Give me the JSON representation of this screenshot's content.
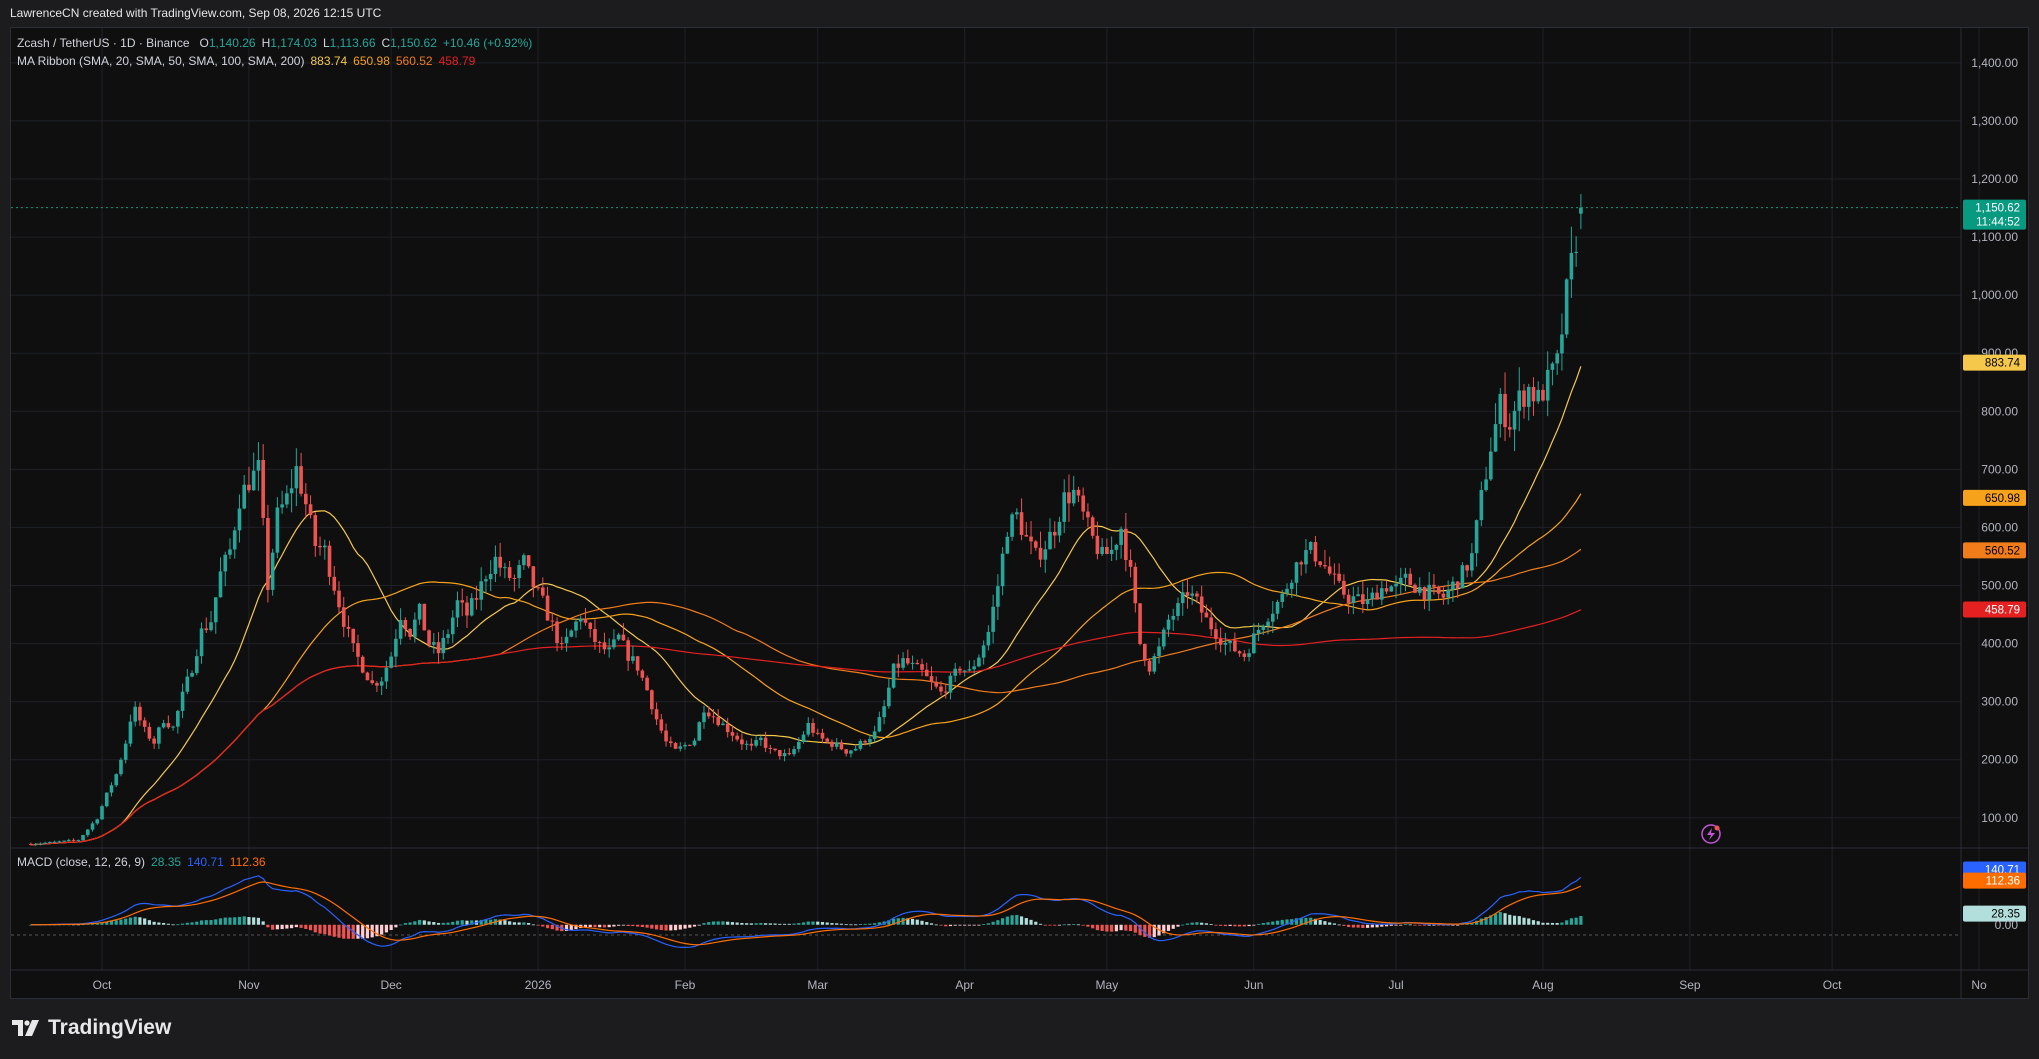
{
  "credit": "LawrenceCN created with TradingView.com, Sep 08, 2026 12:15 UTC",
  "brand": "TradingView",
  "legend": {
    "symbol": "Zcash / TetherUS · 1D · Binance",
    "ohlc": {
      "o_label": "O",
      "o": "1,140.26",
      "h_label": "H",
      "h": "1,174.03",
      "l_label": "L",
      "l": "1,113.66",
      "c_label": "C",
      "c": "1,150.62",
      "change": "+10.46 (+0.92%)"
    },
    "ma_title": "MA Ribbon (SMA, 20, SMA, 50, SMA, 100, SMA, 200)",
    "ma_values": [
      "883.74",
      "650.98",
      "560.52",
      "458.79"
    ]
  },
  "macd_legend": {
    "title": "MACD (close, 12, 26, 9)",
    "hist": "28.35",
    "macd": "140.71",
    "signal": "112.36"
  },
  "colors": {
    "up": "#26a69a",
    "down": "#ef5350",
    "ma20": "#f5c84c",
    "ma50": "#f7a21b",
    "ma100": "#f07c1a",
    "ma200": "#e52020",
    "macd": "#2962ff",
    "signal": "#ff6d00",
    "price_tag": "#089981"
  },
  "price_tag": {
    "price": "1,150.62",
    "countdown": "11:44:52"
  },
  "ma_tags": [
    "883.74",
    "650.98",
    "560.52",
    "458.79"
  ],
  "macd_tags": [
    "140.71",
    "112.36",
    "28.35",
    "0.00"
  ],
  "chart_data": {
    "type": "candlestick",
    "y_ticks": [
      "1,400.00",
      "1,300.00",
      "1,200.00",
      "1,100.00",
      "1,000.00",
      "900.00",
      "800.00",
      "700.00",
      "600.00",
      "500.00",
      "400.00",
      "300.00",
      "200.00",
      "100.00"
    ],
    "y_tick_values": [
      1400,
      1300,
      1200,
      1100,
      1000,
      900,
      800,
      700,
      600,
      500,
      400,
      300,
      200,
      100
    ],
    "ylim": [
      48,
      1460
    ],
    "x_labels": [
      "Oct",
      "Nov",
      "Dec",
      "2026",
      "Feb",
      "Mar",
      "Apr",
      "May",
      "Jun",
      "Jul",
      "Aug",
      "Sep",
      "Oct",
      "No"
    ],
    "x_label_days": [
      15,
      46,
      76,
      107,
      138,
      166,
      197,
      227,
      258,
      288,
      319,
      350,
      380,
      411
    ],
    "start_date": "2025-09-16",
    "end_date": "2026-09-08",
    "price_anchors": [
      [
        0,
        55
      ],
      [
        5,
        58
      ],
      [
        10,
        62
      ],
      [
        12,
        80
      ],
      [
        14,
        100
      ],
      [
        16,
        140
      ],
      [
        18,
        175
      ],
      [
        20,
        230
      ],
      [
        21,
        270
      ],
      [
        22,
        285
      ],
      [
        24,
        250
      ],
      [
        26,
        230
      ],
      [
        28,
        270
      ],
      [
        30,
        255
      ],
      [
        32,
        310
      ],
      [
        34,
        360
      ],
      [
        36,
        420
      ],
      [
        38,
        440
      ],
      [
        40,
        520
      ],
      [
        42,
        560
      ],
      [
        44,
        650
      ],
      [
        46,
        680
      ],
      [
        48,
        700
      ],
      [
        50,
        500
      ],
      [
        52,
        620
      ],
      [
        54,
        650
      ],
      [
        56,
        700
      ],
      [
        58,
        640
      ],
      [
        60,
        570
      ],
      [
        62,
        560
      ],
      [
        64,
        500
      ],
      [
        66,
        440
      ],
      [
        68,
        390
      ],
      [
        70,
        360
      ],
      [
        72,
        330
      ],
      [
        74,
        340
      ],
      [
        76,
        380
      ],
      [
        78,
        450
      ],
      [
        80,
        420
      ],
      [
        82,
        455
      ],
      [
        84,
        400
      ],
      [
        86,
        385
      ],
      [
        88,
        420
      ],
      [
        90,
        470
      ],
      [
        92,
        450
      ],
      [
        94,
        480
      ],
      [
        96,
        520
      ],
      [
        98,
        545
      ],
      [
        100,
        520
      ],
      [
        102,
        510
      ],
      [
        104,
        540
      ],
      [
        106,
        500
      ],
      [
        108,
        470
      ],
      [
        110,
        430
      ],
      [
        112,
        390
      ],
      [
        114,
        420
      ],
      [
        116,
        450
      ],
      [
        118,
        415
      ],
      [
        120,
        395
      ],
      [
        122,
        385
      ],
      [
        124,
        410
      ],
      [
        126,
        380
      ],
      [
        128,
        360
      ],
      [
        130,
        320
      ],
      [
        132,
        270
      ],
      [
        134,
        230
      ],
      [
        136,
        215
      ],
      [
        138,
        225
      ],
      [
        140,
        235
      ],
      [
        142,
        290
      ],
      [
        144,
        275
      ],
      [
        146,
        260
      ],
      [
        148,
        245
      ],
      [
        150,
        230
      ],
      [
        152,
        220
      ],
      [
        154,
        235
      ],
      [
        156,
        215
      ],
      [
        158,
        210
      ],
      [
        160,
        205
      ],
      [
        162,
        230
      ],
      [
        164,
        260
      ],
      [
        166,
        240
      ],
      [
        168,
        230
      ],
      [
        170,
        225
      ],
      [
        172,
        215
      ],
      [
        174,
        220
      ],
      [
        176,
        235
      ],
      [
        178,
        245
      ],
      [
        180,
        290
      ],
      [
        182,
        355
      ],
      [
        184,
        370
      ],
      [
        186,
        360
      ],
      [
        188,
        350
      ],
      [
        190,
        330
      ],
      [
        192,
        315
      ],
      [
        194,
        335
      ],
      [
        196,
        360
      ],
      [
        198,
        350
      ],
      [
        200,
        380
      ],
      [
        202,
        420
      ],
      [
        204,
        500
      ],
      [
        206,
        600
      ],
      [
        208,
        620
      ],
      [
        210,
        580
      ],
      [
        212,
        550
      ],
      [
        214,
        570
      ],
      [
        216,
        600
      ],
      [
        218,
        650
      ],
      [
        220,
        660
      ],
      [
        222,
        620
      ],
      [
        224,
        580
      ],
      [
        226,
        550
      ],
      [
        228,
        560
      ],
      [
        230,
        600
      ],
      [
        232,
        520
      ],
      [
        234,
        400
      ],
      [
        236,
        360
      ],
      [
        238,
        390
      ],
      [
        240,
        440
      ],
      [
        242,
        460
      ],
      [
        244,
        490
      ],
      [
        246,
        470
      ],
      [
        248,
        440
      ],
      [
        250,
        420
      ],
      [
        252,
        400
      ],
      [
        254,
        390
      ],
      [
        256,
        380
      ],
      [
        258,
        410
      ],
      [
        260,
        440
      ],
      [
        262,
        460
      ],
      [
        264,
        480
      ],
      [
        266,
        520
      ],
      [
        268,
        550
      ],
      [
        270,
        560
      ],
      [
        272,
        545
      ],
      [
        274,
        520
      ],
      [
        276,
        495
      ],
      [
        278,
        480
      ],
      [
        280,
        475
      ],
      [
        282,
        470
      ],
      [
        284,
        490
      ],
      [
        286,
        500
      ],
      [
        288,
        495
      ],
      [
        290,
        510
      ],
      [
        292,
        500
      ],
      [
        294,
        490
      ],
      [
        296,
        485
      ],
      [
        298,
        480
      ],
      [
        300,
        500
      ],
      [
        302,
        520
      ],
      [
        304,
        550
      ],
      [
        306,
        650
      ],
      [
        308,
        740
      ],
      [
        310,
        810
      ],
      [
        312,
        780
      ],
      [
        314,
        820
      ],
      [
        316,
        840
      ],
      [
        318,
        820
      ],
      [
        320,
        850
      ],
      [
        322,
        880
      ],
      [
        324,
        1000
      ],
      [
        326,
        1100
      ],
      [
        327,
        1150
      ]
    ],
    "macd_range": [
      -110,
      180
    ],
    "last": {
      "open": 1140.26,
      "high": 1174.03,
      "low": 1113.66,
      "close": 1150.62
    }
  }
}
